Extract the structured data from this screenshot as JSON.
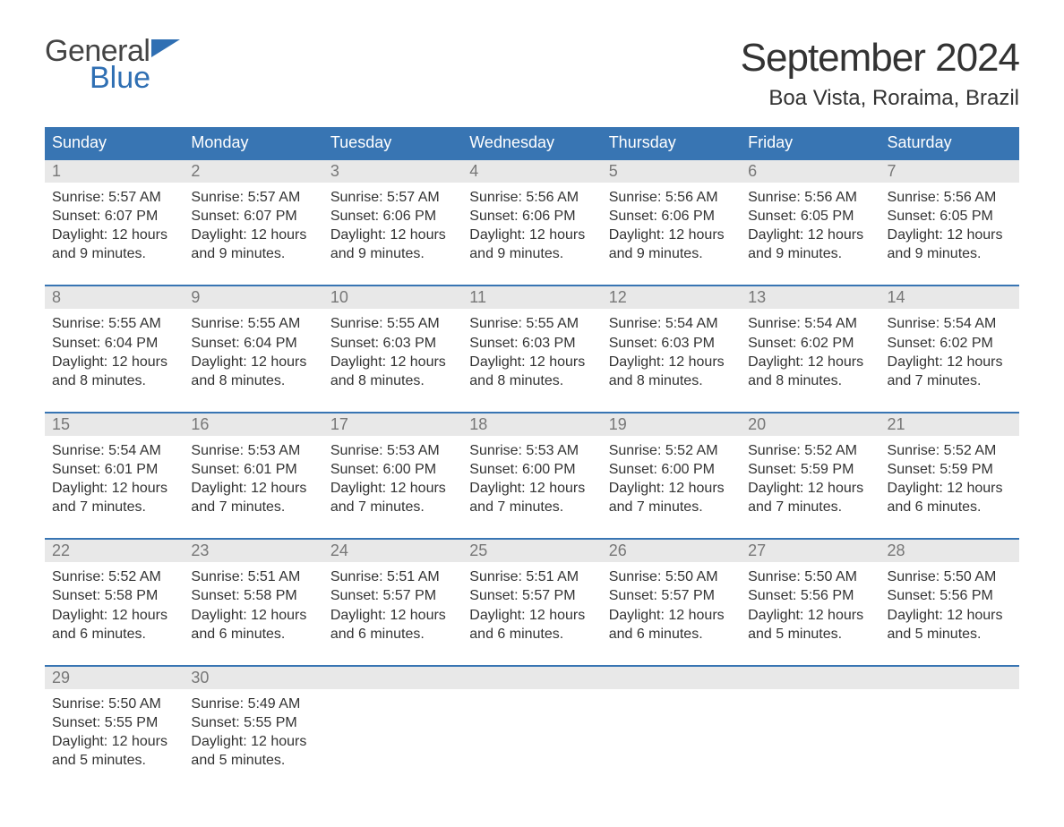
{
  "logo": {
    "text_general": "General",
    "text_blue": "Blue",
    "flag_color": "#2f6fb3",
    "text_general_color": "#444444",
    "text_blue_color": "#2f6fb3"
  },
  "title": "September 2024",
  "location": "Boa Vista, Roraima, Brazil",
  "colors": {
    "header_bg": "#3875b3",
    "header_text": "#ffffff",
    "row_border": "#3875b3",
    "daynum_bg": "#e8e8e8",
    "daynum_text": "#777777",
    "body_text": "#333333",
    "page_bg": "#ffffff"
  },
  "fonts": {
    "title_fontsize": 44,
    "location_fontsize": 24,
    "dayheader_fontsize": 18,
    "daynum_fontsize": 18,
    "body_fontsize": 16
  },
  "day_headers": [
    "Sunday",
    "Monday",
    "Tuesday",
    "Wednesday",
    "Thursday",
    "Friday",
    "Saturday"
  ],
  "labels": {
    "sunrise": "Sunrise:",
    "sunset": "Sunset:",
    "daylight": "Daylight:"
  },
  "weeks": [
    [
      {
        "day": "1",
        "sunrise": "5:57 AM",
        "sunset": "6:07 PM",
        "daylight": "12 hours and 9 minutes."
      },
      {
        "day": "2",
        "sunrise": "5:57 AM",
        "sunset": "6:07 PM",
        "daylight": "12 hours and 9 minutes."
      },
      {
        "day": "3",
        "sunrise": "5:57 AM",
        "sunset": "6:06 PM",
        "daylight": "12 hours and 9 minutes."
      },
      {
        "day": "4",
        "sunrise": "5:56 AM",
        "sunset": "6:06 PM",
        "daylight": "12 hours and 9 minutes."
      },
      {
        "day": "5",
        "sunrise": "5:56 AM",
        "sunset": "6:06 PM",
        "daylight": "12 hours and 9 minutes."
      },
      {
        "day": "6",
        "sunrise": "5:56 AM",
        "sunset": "6:05 PM",
        "daylight": "12 hours and 9 minutes."
      },
      {
        "day": "7",
        "sunrise": "5:56 AM",
        "sunset": "6:05 PM",
        "daylight": "12 hours and 9 minutes."
      }
    ],
    [
      {
        "day": "8",
        "sunrise": "5:55 AM",
        "sunset": "6:04 PM",
        "daylight": "12 hours and 8 minutes."
      },
      {
        "day": "9",
        "sunrise": "5:55 AM",
        "sunset": "6:04 PM",
        "daylight": "12 hours and 8 minutes."
      },
      {
        "day": "10",
        "sunrise": "5:55 AM",
        "sunset": "6:03 PM",
        "daylight": "12 hours and 8 minutes."
      },
      {
        "day": "11",
        "sunrise": "5:55 AM",
        "sunset": "6:03 PM",
        "daylight": "12 hours and 8 minutes."
      },
      {
        "day": "12",
        "sunrise": "5:54 AM",
        "sunset": "6:03 PM",
        "daylight": "12 hours and 8 minutes."
      },
      {
        "day": "13",
        "sunrise": "5:54 AM",
        "sunset": "6:02 PM",
        "daylight": "12 hours and 8 minutes."
      },
      {
        "day": "14",
        "sunrise": "5:54 AM",
        "sunset": "6:02 PM",
        "daylight": "12 hours and 7 minutes."
      }
    ],
    [
      {
        "day": "15",
        "sunrise": "5:54 AM",
        "sunset": "6:01 PM",
        "daylight": "12 hours and 7 minutes."
      },
      {
        "day": "16",
        "sunrise": "5:53 AM",
        "sunset": "6:01 PM",
        "daylight": "12 hours and 7 minutes."
      },
      {
        "day": "17",
        "sunrise": "5:53 AM",
        "sunset": "6:00 PM",
        "daylight": "12 hours and 7 minutes."
      },
      {
        "day": "18",
        "sunrise": "5:53 AM",
        "sunset": "6:00 PM",
        "daylight": "12 hours and 7 minutes."
      },
      {
        "day": "19",
        "sunrise": "5:52 AM",
        "sunset": "6:00 PM",
        "daylight": "12 hours and 7 minutes."
      },
      {
        "day": "20",
        "sunrise": "5:52 AM",
        "sunset": "5:59 PM",
        "daylight": "12 hours and 7 minutes."
      },
      {
        "day": "21",
        "sunrise": "5:52 AM",
        "sunset": "5:59 PM",
        "daylight": "12 hours and 6 minutes."
      }
    ],
    [
      {
        "day": "22",
        "sunrise": "5:52 AM",
        "sunset": "5:58 PM",
        "daylight": "12 hours and 6 minutes."
      },
      {
        "day": "23",
        "sunrise": "5:51 AM",
        "sunset": "5:58 PM",
        "daylight": "12 hours and 6 minutes."
      },
      {
        "day": "24",
        "sunrise": "5:51 AM",
        "sunset": "5:57 PM",
        "daylight": "12 hours and 6 minutes."
      },
      {
        "day": "25",
        "sunrise": "5:51 AM",
        "sunset": "5:57 PM",
        "daylight": "12 hours and 6 minutes."
      },
      {
        "day": "26",
        "sunrise": "5:50 AM",
        "sunset": "5:57 PM",
        "daylight": "12 hours and 6 minutes."
      },
      {
        "day": "27",
        "sunrise": "5:50 AM",
        "sunset": "5:56 PM",
        "daylight": "12 hours and 5 minutes."
      },
      {
        "day": "28",
        "sunrise": "5:50 AM",
        "sunset": "5:56 PM",
        "daylight": "12 hours and 5 minutes."
      }
    ],
    [
      {
        "day": "29",
        "sunrise": "5:50 AM",
        "sunset": "5:55 PM",
        "daylight": "12 hours and 5 minutes."
      },
      {
        "day": "30",
        "sunrise": "5:49 AM",
        "sunset": "5:55 PM",
        "daylight": "12 hours and 5 minutes."
      },
      null,
      null,
      null,
      null,
      null
    ]
  ]
}
